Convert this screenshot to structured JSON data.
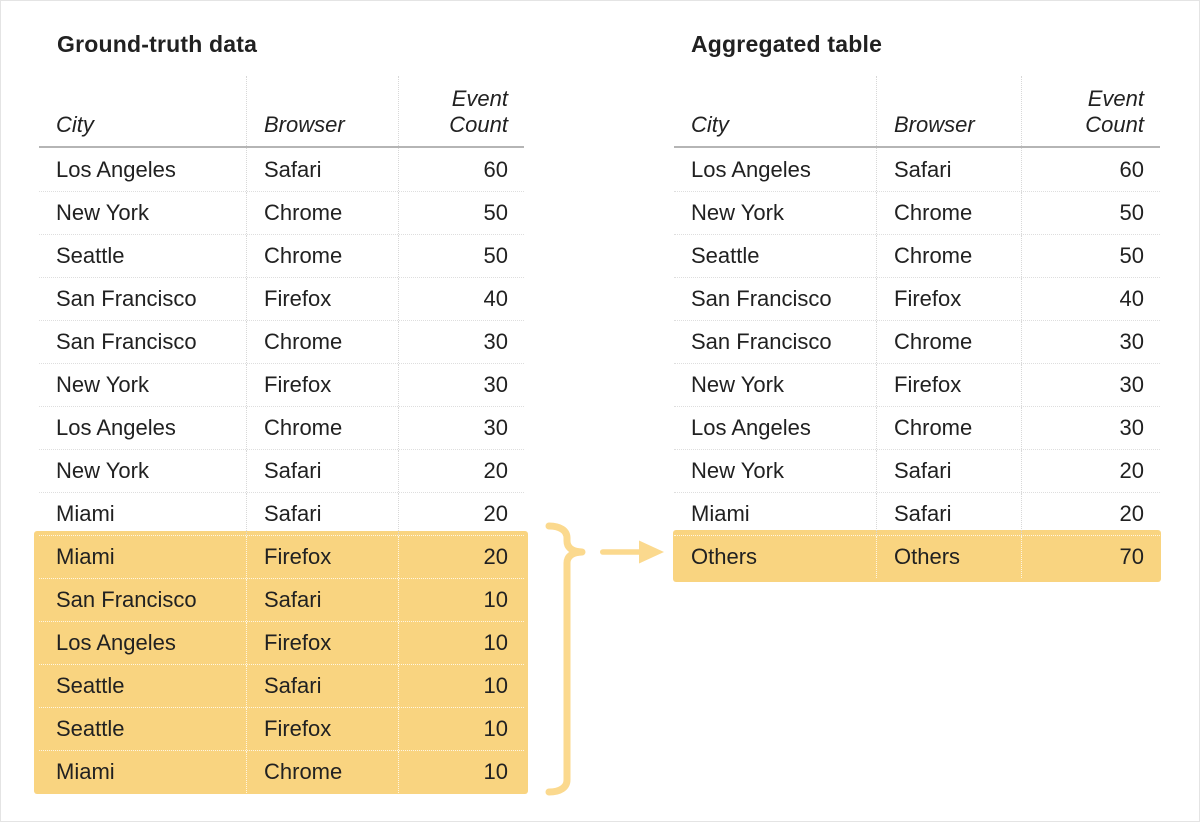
{
  "figure": {
    "colors": {
      "highlight_fill": "#F9D480",
      "annotation_accent": "#FBD98E",
      "text": "#212121",
      "header_rule": "#b5b5b5",
      "row_separator": "#dedede",
      "canvas_border": "#e4e4e4"
    },
    "annotation": {
      "brace_icon": "curly-brace-icon",
      "arrow_icon": "right-arrow-icon"
    },
    "tables": [
      {
        "id": "ground-truth",
        "title": "Ground-truth data",
        "columns": [
          "City",
          "Browser",
          "Event\nCount"
        ],
        "highlight_start": 9,
        "rows": [
          {
            "city": "Los Angeles",
            "browser": "Safari",
            "count": "60"
          },
          {
            "city": "New York",
            "browser": "Chrome",
            "count": "50"
          },
          {
            "city": "Seattle",
            "browser": "Chrome",
            "count": "50"
          },
          {
            "city": "San Francisco",
            "browser": "Firefox",
            "count": "40"
          },
          {
            "city": "San Francisco",
            "browser": "Chrome",
            "count": "30"
          },
          {
            "city": "New York",
            "browser": "Firefox",
            "count": "30"
          },
          {
            "city": "Los Angeles",
            "browser": "Chrome",
            "count": "30"
          },
          {
            "city": "New York",
            "browser": "Safari",
            "count": "20"
          },
          {
            "city": "Miami",
            "browser": "Safari",
            "count": "20"
          },
          {
            "city": "Miami",
            "browser": "Firefox",
            "count": "20"
          },
          {
            "city": "San Francisco",
            "browser": "Safari",
            "count": "10"
          },
          {
            "city": "Los Angeles",
            "browser": "Firefox",
            "count": "10"
          },
          {
            "city": "Seattle",
            "browser": "Safari",
            "count": "10"
          },
          {
            "city": "Seattle",
            "browser": "Firefox",
            "count": "10"
          },
          {
            "city": "Miami",
            "browser": "Chrome",
            "count": "10"
          }
        ]
      },
      {
        "id": "aggregated",
        "title": "Aggregated table",
        "columns": [
          "City",
          "Browser",
          "Event\nCount"
        ],
        "highlight_start": 9,
        "rows": [
          {
            "city": "Los Angeles",
            "browser": "Safari",
            "count": "60"
          },
          {
            "city": "New York",
            "browser": "Chrome",
            "count": "50"
          },
          {
            "city": "Seattle",
            "browser": "Chrome",
            "count": "50"
          },
          {
            "city": "San Francisco",
            "browser": "Firefox",
            "count": "40"
          },
          {
            "city": "San Francisco",
            "browser": "Chrome",
            "count": "30"
          },
          {
            "city": "New York",
            "browser": "Firefox",
            "count": "30"
          },
          {
            "city": "Los Angeles",
            "browser": "Chrome",
            "count": "30"
          },
          {
            "city": "New York",
            "browser": "Safari",
            "count": "20"
          },
          {
            "city": "Miami",
            "browser": "Safari",
            "count": "20"
          },
          {
            "city": "Others",
            "browser": "Others",
            "count": "70"
          }
        ]
      }
    ]
  }
}
